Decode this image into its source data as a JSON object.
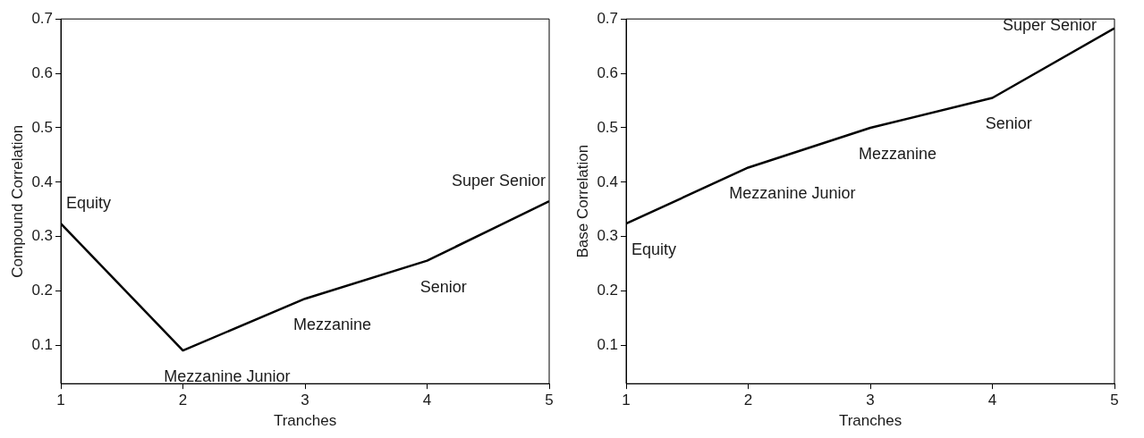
{
  "chart_data": [
    {
      "type": "line",
      "xlabel": "Tranches",
      "ylabel": "Compound Correlation",
      "x": [
        1,
        2,
        3,
        4,
        5
      ],
      "series": [
        {
          "color": "#000000",
          "values": [
            0.324,
            0.091,
            0.186,
            0.256,
            0.365
          ]
        }
      ],
      "xlim": [
        1,
        5
      ],
      "xticks": [
        1,
        2,
        3,
        4,
        5
      ],
      "ylim": [
        0.03,
        0.7
      ],
      "yticks": [
        0.1,
        0.2,
        0.3,
        0.4,
        0.5,
        0.6,
        0.7
      ],
      "grid": false,
      "legend": false,
      "marker": "none",
      "line_style": "solid",
      "annotations": [
        {
          "text": "Equity",
          "x": 1,
          "y": 0.324
        },
        {
          "text": "Mezzanine Junior",
          "x": 2,
          "y": 0.091
        },
        {
          "text": "Mezzanine",
          "x": 3,
          "y": 0.186
        },
        {
          "text": "Senior",
          "x": 4,
          "y": 0.256
        },
        {
          "text": "Super Senior",
          "x": 5,
          "y": 0.365
        }
      ]
    },
    {
      "type": "line",
      "xlabel": "Tranches",
      "ylabel": "Base Correlation",
      "x": [
        1,
        2,
        3,
        4,
        5
      ],
      "series": [
        {
          "color": "#000000",
          "values": [
            0.324,
            0.427,
            0.5,
            0.555,
            0.683
          ]
        }
      ],
      "xlim": [
        1,
        5
      ],
      "xticks": [
        1,
        2,
        3,
        4,
        5
      ],
      "ylim": [
        0.03,
        0.7
      ],
      "yticks": [
        0.1,
        0.2,
        0.3,
        0.4,
        0.5,
        0.6,
        0.7
      ],
      "grid": false,
      "legend": false,
      "marker": "none",
      "line_style": "solid",
      "annotations": [
        {
          "text": "Equity",
          "x": 1,
          "y": 0.324
        },
        {
          "text": "Mezzanine Junior",
          "x": 2,
          "y": 0.427
        },
        {
          "text": "Mezzanine",
          "x": 3,
          "y": 0.5
        },
        {
          "text": "Senior",
          "x": 4,
          "y": 0.555
        },
        {
          "text": "Super Senior",
          "x": 5,
          "y": 0.683
        }
      ]
    }
  ]
}
